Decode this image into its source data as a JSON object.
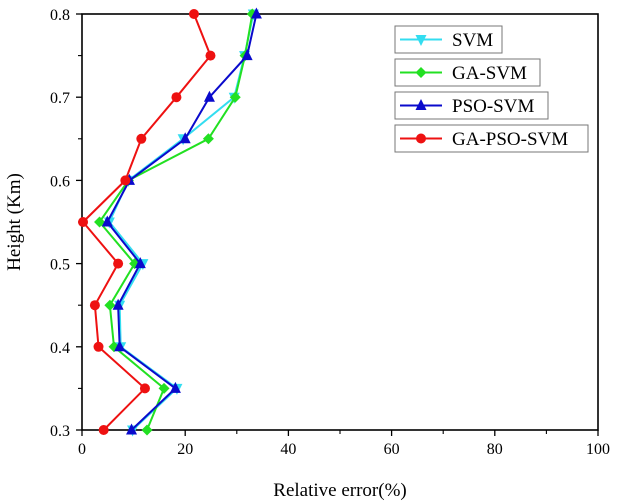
{
  "chart_data": {
    "type": "line",
    "title": "",
    "xlabel": "Relative error(%)",
    "ylabel": "Height (Km)",
    "xlim": [
      0,
      100
    ],
    "ylim": [
      0.3,
      0.8
    ],
    "x_ticks": [
      0,
      20,
      40,
      60,
      80,
      100
    ],
    "x_tick_labels": [
      "0",
      "20",
      "40",
      "60",
      "80",
      "100"
    ],
    "x_minor_step": 10,
    "y_ticks": [
      0.3,
      0.4,
      0.5,
      0.6,
      0.7,
      0.8
    ],
    "y_tick_labels": [
      "0.3",
      "0.4",
      "0.5",
      "0.6",
      "0.7",
      "0.8"
    ],
    "y_minor_step": 0.05,
    "grid": false,
    "legend_position": "top-right",
    "y": [
      0.3,
      0.35,
      0.4,
      0.45,
      0.5,
      0.55,
      0.6,
      0.65,
      0.7,
      0.75,
      0.8
    ],
    "series": [
      {
        "name": "SVM",
        "color": "#33ddf0",
        "marker": "triangle-down",
        "x": [
          9.8,
          18.4,
          7.5,
          7.3,
          11.8,
          5.3,
          9.0,
          19.6,
          29.5,
          31.5,
          33.2
        ]
      },
      {
        "name": "GA-SVM",
        "color": "#22e022",
        "marker": "diamond",
        "x": [
          12.6,
          15.9,
          6.2,
          5.4,
          10.2,
          3.4,
          9.0,
          24.5,
          29.7,
          31.6,
          33.0
        ]
      },
      {
        "name": "PSO-SVM",
        "color": "#0a0acc",
        "marker": "triangle-up",
        "x": [
          9.6,
          18.1,
          7.3,
          7.0,
          11.3,
          4.9,
          9.2,
          20.0,
          24.7,
          32.0,
          33.8
        ]
      },
      {
        "name": "GA-PSO-SVM",
        "color": "#ee1111",
        "marker": "circle",
        "x": [
          4.2,
          12.2,
          3.2,
          2.5,
          7.0,
          0.2,
          8.4,
          11.5,
          18.3,
          24.9,
          21.7
        ]
      }
    ]
  }
}
